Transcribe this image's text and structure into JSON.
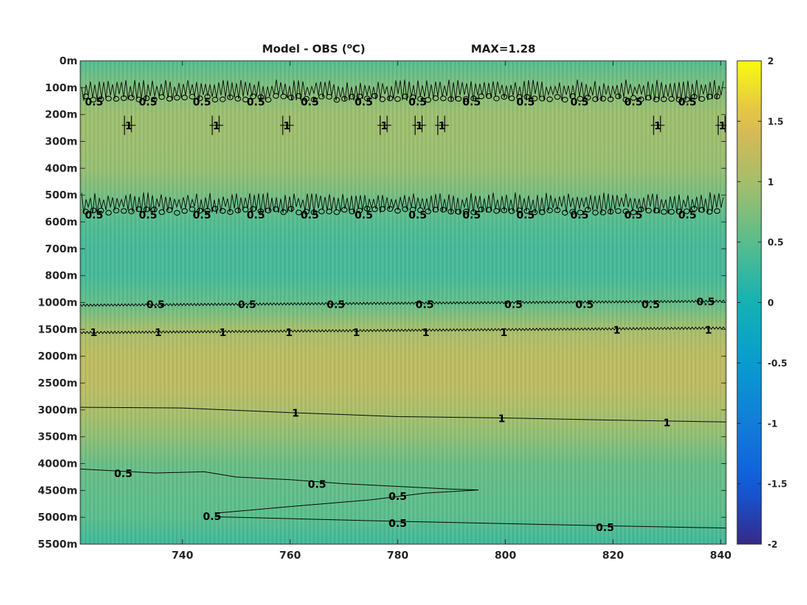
{
  "chart_data": {
    "type": "heatmap",
    "title": "Model - OBS (",
    "title_sup": "o",
    "title_unit": "C)",
    "max_label": "MAX=1.28",
    "x_ticks": [
      740,
      760,
      780,
      800,
      820,
      840
    ],
    "xlim": [
      721,
      841
    ],
    "y_ticks": [
      "0m",
      "100m",
      "200m",
      "300m",
      "400m",
      "500m",
      "600m",
      "700m",
      "800m",
      "1000m",
      "1500m",
      "2000m",
      "2500m",
      "3000m",
      "3500m",
      "4000m",
      "4500m",
      "5000m",
      "5500m"
    ],
    "colorbar": {
      "ticks": [
        2,
        1.5,
        1,
        0.5,
        0,
        -0.5,
        -1,
        -1.5,
        -2
      ],
      "clim": [
        -2,
        2
      ],
      "colormap": "parula"
    },
    "depth_profile": [
      {
        "depth": "0m",
        "value": 0.45
      },
      {
        "depth": "100m",
        "value": 0.75
      },
      {
        "depth": "200m",
        "value": 0.95
      },
      {
        "depth": "300m",
        "value": 0.95
      },
      {
        "depth": "400m",
        "value": 0.9
      },
      {
        "depth": "500m",
        "value": 0.7
      },
      {
        "depth": "600m",
        "value": 0.45
      },
      {
        "depth": "700m",
        "value": 0.35
      },
      {
        "depth": "800m",
        "value": 0.35
      },
      {
        "depth": "1000m",
        "value": 0.55
      },
      {
        "depth": "1500m",
        "value": 1.0
      },
      {
        "depth": "2000m",
        "value": 1.2
      },
      {
        "depth": "2500m",
        "value": 1.2
      },
      {
        "depth": "3000m",
        "value": 1.05
      },
      {
        "depth": "3500m",
        "value": 0.85
      },
      {
        "depth": "4000m",
        "value": 0.6
      },
      {
        "depth": "4500m",
        "value": 0.55
      },
      {
        "depth": "5000m",
        "value": 0.5
      },
      {
        "depth": "5500m",
        "value": 0.3
      }
    ],
    "contour_labels": [
      {
        "text": "0.5",
        "x": 735,
        "depth_index": 9.05
      },
      {
        "text": "0.5",
        "x": 752,
        "depth_index": 9.05
      },
      {
        "text": "0.5",
        "x": 768.5,
        "depth_index": 9.05
      },
      {
        "text": "0.5",
        "x": 785,
        "depth_index": 9.05
      },
      {
        "text": "0.5",
        "x": 801.5,
        "depth_index": 9.05
      },
      {
        "text": "0.5",
        "x": 814.7,
        "depth_index": 9.05
      },
      {
        "text": "0.5",
        "x": 827,
        "depth_index": 9.05
      },
      {
        "text": "0.5",
        "x": 837.2,
        "depth_index": 8.95
      },
      {
        "text": "1",
        "x": 723.5,
        "depth_index": 10.1
      },
      {
        "text": "1",
        "x": 735.5,
        "depth_index": 10.1
      },
      {
        "text": "1",
        "x": 747.5,
        "depth_index": 10.1
      },
      {
        "text": "1",
        "x": 759.8,
        "depth_index": 10.1
      },
      {
        "text": "1",
        "x": 772.3,
        "depth_index": 10.1
      },
      {
        "text": "1",
        "x": 785.2,
        "depth_index": 10.1
      },
      {
        "text": "1",
        "x": 799.7,
        "depth_index": 10.1
      },
      {
        "text": "1",
        "x": 820.7,
        "depth_index": 10.0
      },
      {
        "text": "1",
        "x": 837.7,
        "depth_index": 10.0
      },
      {
        "text": "1",
        "x": 761,
        "depth_index": 13.1
      },
      {
        "text": "1",
        "x": 799.3,
        "depth_index": 13.3
      },
      {
        "text": "1",
        "x": 830,
        "depth_index": 13.45
      },
      {
        "text": "0.5",
        "x": 729,
        "depth_index": 15.35
      },
      {
        "text": "0.5",
        "x": 765,
        "depth_index": 15.75
      },
      {
        "text": "0.5",
        "x": 780,
        "depth_index": 16.2
      },
      {
        "text": "0.5",
        "x": 745.5,
        "depth_index": 16.95
      },
      {
        "text": "0.5",
        "x": 780,
        "depth_index": 17.2
      },
      {
        "text": "0.5",
        "x": 818.5,
        "depth_index": 17.35
      }
    ],
    "contour_lines": [
      {
        "value": "0.5",
        "points": [
          [
            721,
            9.1
          ],
          [
            841,
            8.95
          ]
        ],
        "wavy": true
      },
      {
        "value": "1",
        "points": [
          [
            721,
            10.12
          ],
          [
            841,
            9.95
          ]
        ],
        "wavy": true
      },
      {
        "value": "1",
        "points": [
          [
            721,
            12.9
          ],
          [
            740,
            12.93
          ],
          [
            760,
            13.1
          ],
          [
            780,
            13.25
          ],
          [
            800,
            13.3
          ],
          [
            820,
            13.38
          ],
          [
            841,
            13.45
          ]
        ],
        "wavy": false
      },
      {
        "value": "0.5",
        "points": [
          [
            721,
            15.2
          ],
          [
            735,
            15.35
          ],
          [
            744,
            15.3
          ],
          [
            750,
            15.5
          ],
          [
            760,
            15.6
          ],
          [
            770,
            15.75
          ],
          [
            780,
            15.85
          ],
          [
            790,
            15.95
          ],
          [
            795,
            15.98
          ]
        ],
        "wavy": false
      },
      {
        "value": "0.5",
        "points": [
          [
            746,
            16.85
          ],
          [
            760,
            16.6
          ],
          [
            775,
            16.35
          ],
          [
            785,
            16.1
          ],
          [
            795,
            15.98
          ]
        ],
        "wavy": false
      },
      {
        "value": "0.5",
        "points": [
          [
            746,
            16.98
          ],
          [
            780,
            17.15
          ],
          [
            820,
            17.32
          ],
          [
            841,
            17.4
          ]
        ],
        "wavy": false
      }
    ],
    "noisy_contour_bands": [
      {
        "depth_index": 1.1,
        "label": "0.5"
      },
      {
        "depth_index": 5.3,
        "label": "0.5"
      }
    ],
    "small_contour_blobs": [
      {
        "x": 730,
        "label": "1"
      },
      {
        "x": 746.3,
        "label": "1"
      },
      {
        "x": 759.4,
        "label": "1"
      },
      {
        "x": 777.5,
        "label": "1"
      },
      {
        "x": 784,
        "label": "1"
      },
      {
        "x": 788.2,
        "label": "1"
      },
      {
        "x": 828.3,
        "label": "1"
      },
      {
        "x": 840.3,
        "label": "1"
      }
    ]
  }
}
